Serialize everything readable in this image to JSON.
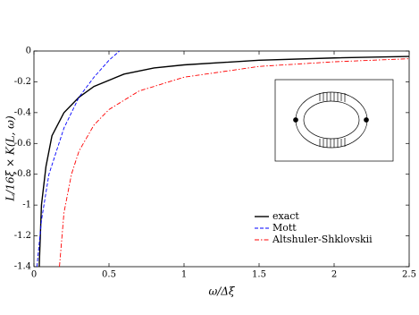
{
  "chart_data": {
    "type": "line",
    "xlabel": "ω/Δξ",
    "ylabel": "L/16ξ × K(L, ω)",
    "xlim": [
      0,
      2.5
    ],
    "xticks": [
      0,
      0.5,
      1,
      1.5,
      2,
      2.5
    ],
    "ylim": [
      -1.4,
      0
    ],
    "yticks": [
      0,
      -0.2,
      -0.4,
      -0.6,
      -0.8,
      -1,
      -1.2,
      -1.4
    ],
    "grid": false,
    "legend": "lower right",
    "series": [
      {
        "name": "exact",
        "color": "#000000",
        "dash": "solid",
        "x": [
          0.035,
          0.05,
          0.08,
          0.12,
          0.2,
          0.3,
          0.4,
          0.6,
          0.8,
          1,
          1.5,
          2,
          2.5
        ],
        "values": [
          -1.4,
          -1.0,
          -0.75,
          -0.55,
          -0.4,
          -0.3,
          -0.23,
          -0.15,
          -0.11,
          -0.09,
          -0.06,
          -0.045,
          -0.035
        ]
      },
      {
        "name": "Mott",
        "color": "#0000ff",
        "dash": "dashed",
        "x": [
          0.02,
          0.05,
          0.1,
          0.2,
          0.3,
          0.4,
          0.5,
          0.57
        ],
        "values": [
          -1.4,
          -1.1,
          -0.8,
          -0.5,
          -0.3,
          -0.17,
          -0.06,
          0
        ]
      },
      {
        "name": "Altshuler-Shklovskii",
        "color": "#ff0000",
        "dash": "dashdot",
        "x": [
          0.17,
          0.2,
          0.25,
          0.3,
          0.4,
          0.5,
          0.7,
          1,
          1.5,
          2,
          2.5
        ],
        "values": [
          -1.4,
          -1.05,
          -0.8,
          -0.65,
          -0.48,
          -0.38,
          -0.26,
          -0.17,
          -0.1,
          -0.07,
          -0.05
        ]
      }
    ]
  }
}
